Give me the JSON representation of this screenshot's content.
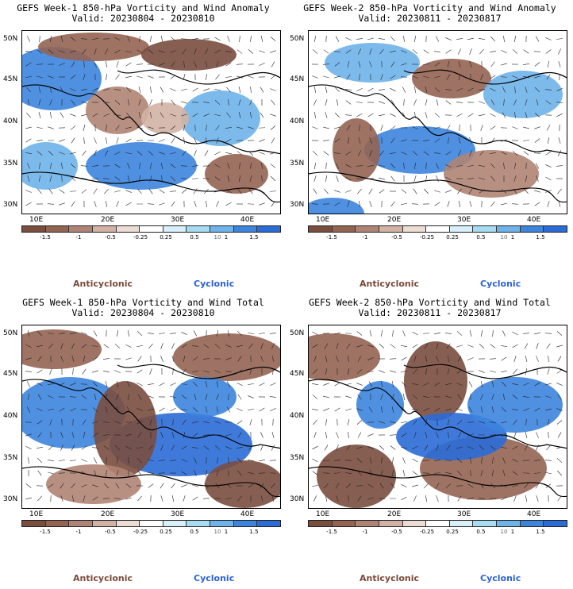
{
  "panels": [
    {
      "title": "GEFS Week-1 850-hPa Vorticity and Wind Anomaly",
      "valid": "Valid: 20230804 - 20230810"
    },
    {
      "title": "GEFS Week-2 850-hPa Vorticity and Wind Anomaly",
      "valid": "Valid: 20230811 - 20230817"
    },
    {
      "title": "GEFS Week-1 850-hPa Vorticity and Wind Total",
      "valid": "Valid: 20230804 - 20230810"
    },
    {
      "title": "GEFS Week-2 850-hPa Vorticity and Wind Total",
      "valid": "Valid: 20230811 - 20230817"
    }
  ],
  "lat_labels": [
    "50N",
    "45N",
    "40N",
    "35N",
    "30N"
  ],
  "lon_labels": [
    "10E",
    "20E",
    "30E",
    "40E"
  ],
  "colorbar": {
    "ticks": [
      "-1.5",
      "-1",
      "-0.5",
      "-0.25",
      "0.25",
      "0.5",
      "1",
      "1.5"
    ],
    "scale_label": "10",
    "colors": [
      "#7a4e3f",
      "#946452",
      "#b08474",
      "#d2b2a4",
      "#ecdcd3",
      "#ffffff",
      "#d8f0fa",
      "#a6dbf2",
      "#6fb3ea",
      "#3c84dd",
      "#2a6bd6"
    ]
  },
  "labels": {
    "anticyclonic": "Anticyclonic",
    "cyclonic": "Cyclonic"
  },
  "colors": {
    "anticyclonic": "#7b4a3a",
    "cyclonic": "#2b63d8"
  }
}
